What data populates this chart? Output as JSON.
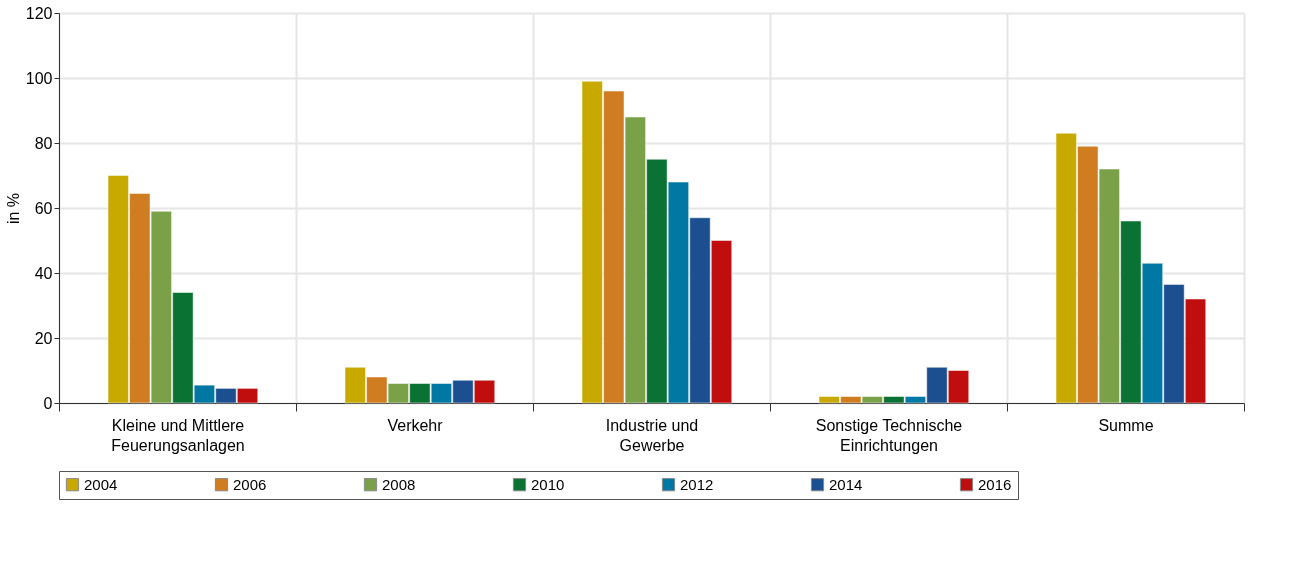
{
  "chart_data": {
    "type": "bar",
    "ylabel": "in %",
    "categories": [
      "Kleine und Mittlere Feuerungsanlagen",
      "Verkehr",
      "Industrie und Gewerbe",
      "Sonstige Technische Einrichtungen",
      "Summe"
    ],
    "series": [
      {
        "name": "2004",
        "color": "#c8a900",
        "values": [
          70,
          11,
          99,
          2,
          83
        ]
      },
      {
        "name": "2006",
        "color": "#d07c20",
        "values": [
          64.5,
          8,
          96,
          2,
          79
        ]
      },
      {
        "name": "2008",
        "color": "#7ba148",
        "values": [
          59,
          6,
          88,
          2,
          72
        ]
      },
      {
        "name": "2010",
        "color": "#0a7233",
        "values": [
          34,
          6,
          75,
          2,
          56
        ]
      },
      {
        "name": "2012",
        "color": "#0078a3",
        "values": [
          5.5,
          6,
          68,
          2,
          43
        ]
      },
      {
        "name": "2014",
        "color": "#1b4f8f",
        "values": [
          4.5,
          7,
          57,
          11,
          36.5
        ]
      },
      {
        "name": "2016",
        "color": "#c00d0d",
        "values": [
          4.5,
          7,
          50,
          10,
          32
        ]
      }
    ],
    "ylim": [
      0,
      120
    ],
    "yticks": [
      0,
      20,
      40,
      60,
      80,
      100,
      120
    ],
    "grid": true,
    "legend": "bottom"
  }
}
